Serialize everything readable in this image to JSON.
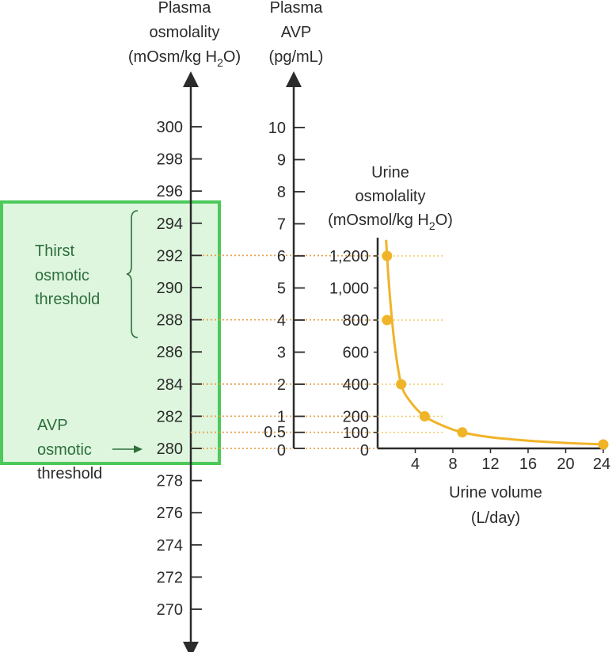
{
  "headers": {
    "osm_line1": "Plasma",
    "osm_line2": "osmolality",
    "osm_unit_pre": "(mOsm/kg H",
    "osm_unit_sub": "2",
    "osm_unit_post": "O)",
    "avp_line1": "Plasma",
    "avp_line2": "AVP",
    "avp_unit": "(pg/mL)",
    "urine_line1": "Urine",
    "urine_line2": "osmolality",
    "urine_unit_pre": "(mOsmol/kg H",
    "urine_unit_sub": "2",
    "urine_unit_post": "O)",
    "xlabel_line1": "Urine volume",
    "xlabel_line2": "(L/day)"
  },
  "annotations": {
    "thirst_line1": "Thirst",
    "thirst_line2": "osmotic",
    "thirst_line3": "threshold",
    "avp_line1": "AVP",
    "avp_line2": "osmotic",
    "avp_line3": "threshold"
  },
  "colors": {
    "axis": "#2b2b2b",
    "curve": "#f0b429",
    "point": "#f0b429",
    "dotted_link": "#e8a34d",
    "highlight_fill": "#c8f0c8",
    "highlight_border": "#4cc95a",
    "annotation_text": "#2e6e3c"
  },
  "chart_data": {
    "type": "nomogram",
    "osmolality_axis": {
      "label": "Plasma osmolality (mOsm/kg H2O)",
      "ticks": [
        270,
        272,
        274,
        276,
        278,
        280,
        282,
        284,
        286,
        288,
        290,
        292,
        294,
        296,
        298,
        300
      ],
      "tick_labels": [
        "270",
        "272",
        "274",
        "276",
        "278",
        "280",
        "282",
        "284",
        "286",
        "288",
        "290",
        "292",
        "294",
        "296",
        "298",
        "300"
      ],
      "range": [
        270,
        300
      ]
    },
    "avp_axis": {
      "label": "Plasma AVP (pg/mL)",
      "ticks": [
        0,
        0.5,
        1,
        2,
        3,
        4,
        5,
        6,
        7,
        8,
        9,
        10
      ],
      "tick_labels": [
        "0",
        "0.5",
        "1",
        "2",
        "3",
        "4",
        "5",
        "6",
        "7",
        "8",
        "9",
        "10"
      ],
      "range": [
        0,
        10
      ]
    },
    "urine_osmolality_axis": {
      "label": "Urine osmolality (mOsmol/kg H2O)",
      "ticks": [
        0,
        100,
        200,
        400,
        600,
        800,
        1000,
        1200
      ],
      "tick_labels": [
        "0",
        "100",
        "200",
        "400",
        "600",
        "800",
        "1,000",
        "1,200"
      ]
    },
    "urine_volume_axis": {
      "label": "Urine volume (L/day)",
      "ticks": [
        4,
        8,
        12,
        16,
        20,
        24
      ],
      "tick_labels": [
        "4",
        "8",
        "12",
        "16",
        "20",
        "24"
      ],
      "range": [
        0,
        24
      ]
    },
    "linked_levels": [
      {
        "osmolality": 280,
        "avp": 0,
        "urine_osmolality": 0
      },
      {
        "osmolality": 281,
        "avp": 0.5,
        "urine_osmolality": 100
      },
      {
        "osmolality": 282,
        "avp": 1,
        "urine_osmolality": 200
      },
      {
        "osmolality": 284,
        "avp": 2,
        "urine_osmolality": 400
      },
      {
        "osmolality": 288,
        "avp": 4,
        "urine_osmolality": 800
      },
      {
        "osmolality": 292,
        "avp": 6,
        "urine_osmolality": 1200
      }
    ],
    "series": [
      {
        "x": [
          1.0,
          1.0,
          2.5,
          5.0,
          9.0,
          24.0
        ],
        "y": [
          1200,
          800,
          400,
          200,
          100,
          25
        ]
      }
    ],
    "curve": {
      "x": [
        0.9,
        1.0,
        1.3,
        1.8,
        2.5,
        3.5,
        5.0,
        7.0,
        9.0,
        12.0,
        16.0,
        20.0,
        24.0
      ],
      "y": [
        1300,
        1200,
        950,
        650,
        400,
        290,
        200,
        140,
        100,
        70,
        48,
        34,
        25
      ]
    },
    "thirst_threshold_range": [
      288,
      294
    ],
    "avp_threshold": 280
  }
}
